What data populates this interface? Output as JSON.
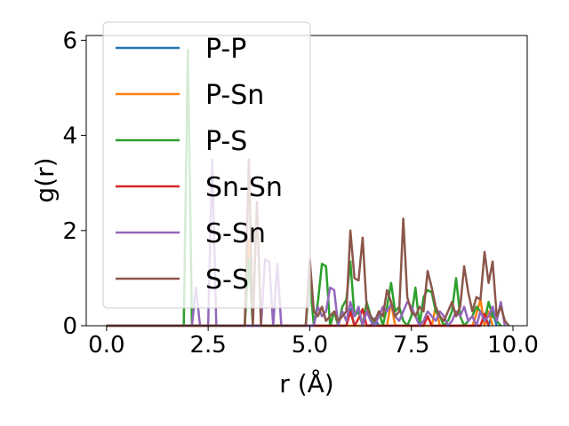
{
  "chart_data": {
    "type": "line",
    "xlabel": "r (Å)",
    "ylabel": "g(r)",
    "xlim": [
      -0.5,
      10.35
    ],
    "ylim": [
      0,
      6.1
    ],
    "x_ticks": [
      0.0,
      2.5,
      5.0,
      7.5,
      10.0
    ],
    "x_tick_labels": [
      "0.0",
      "2.5",
      "5.0",
      "7.5",
      "10.0"
    ],
    "y_ticks": [
      0,
      2,
      4,
      6
    ],
    "y_tick_labels": [
      "0",
      "2",
      "4",
      "6"
    ],
    "legend_position": "top-left",
    "grid": false,
    "series": [
      {
        "name": "P-P",
        "color": "#1f77b4",
        "x": [
          0,
          5.9,
          6.0,
          6.1,
          6.5,
          6.6,
          6.7,
          9.2,
          9.3,
          9.4,
          9.5,
          9.6
        ],
        "y": [
          0,
          0,
          0.35,
          0,
          0,
          0.15,
          0,
          0,
          0.25,
          0,
          0.3,
          0
        ]
      },
      {
        "name": "P-Sn",
        "color": "#ff7f0e",
        "x": [
          0,
          3.4,
          3.5,
          3.6,
          5.5,
          5.6,
          5.7,
          6.9,
          7.0,
          7.1,
          8.0,
          8.1,
          8.2,
          9.0,
          9.1,
          9.2,
          9.3,
          9.4,
          9.5
        ],
        "y": [
          0,
          0,
          1.8,
          0,
          0,
          0.3,
          0,
          0,
          0.5,
          0,
          0,
          0.4,
          0,
          0,
          0.25,
          0.55,
          0,
          0.3,
          0
        ]
      },
      {
        "name": "P-S",
        "color": "#2ca02c",
        "x": [
          0,
          1.9,
          2.0,
          2.1,
          3.4,
          3.5,
          3.6,
          4.9,
          5.0,
          5.1,
          5.2,
          5.3,
          5.4,
          5.5,
          5.6,
          5.7,
          5.8,
          5.9,
          6.0,
          6.1,
          6.2,
          6.3,
          6.4,
          6.5,
          6.6,
          6.7,
          6.8,
          6.9,
          7.0,
          7.1,
          7.2,
          7.3,
          7.4,
          7.5,
          7.6,
          7.7,
          7.8,
          7.9,
          8.0,
          8.1,
          8.2,
          8.3,
          8.4,
          8.5,
          8.6,
          8.7,
          8.8,
          8.9,
          9.0,
          9.1,
          9.2,
          9.3,
          9.4,
          9.5,
          9.6,
          9.7
        ],
        "y": [
          0,
          0,
          5.8,
          0,
          0,
          1.4,
          0,
          0,
          1.0,
          0,
          0.5,
          1.3,
          1.25,
          0,
          0.3,
          0,
          0.4,
          0.55,
          1.35,
          0.2,
          0.3,
          0,
          0.5,
          0.2,
          0,
          0.3,
          0,
          0.4,
          0.9,
          0.3,
          0.4,
          0.1,
          0,
          0.2,
          0.8,
          0,
          0.6,
          0.75,
          0.7,
          0.3,
          0.2,
          0,
          0.1,
          0.3,
          1.0,
          0.2,
          0,
          0.1,
          0.2,
          0.4,
          0.3,
          0.1,
          0.5,
          0.2,
          0.1,
          0
        ]
      },
      {
        "name": "Sn-Sn",
        "color": "#d62728",
        "x": [
          0,
          5.9,
          6.0,
          6.1,
          6.2,
          6.3,
          6.4,
          7.8,
          7.9,
          8.0,
          9.2,
          9.3,
          9.4
        ],
        "y": [
          0,
          0,
          0.3,
          0,
          0.15,
          0.35,
          0,
          0,
          0.2,
          0,
          0,
          0.25,
          0
        ]
      },
      {
        "name": "S-Sn",
        "color": "#9467bd",
        "x": [
          0,
          2.1,
          2.2,
          2.3,
          2.5,
          2.6,
          2.7,
          3.8,
          3.9,
          4.0,
          4.1,
          4.2,
          4.3,
          4.4,
          5.1,
          5.2,
          5.3,
          5.4,
          5.5,
          5.6,
          5.7,
          5.8,
          5.9,
          6.0,
          6.1,
          6.2,
          6.3,
          6.4,
          6.5,
          6.6,
          6.7,
          6.8,
          6.9,
          7.0,
          7.1,
          7.2,
          7.3,
          7.4,
          7.5,
          7.6,
          7.7,
          7.8,
          7.9,
          8.0,
          8.1,
          8.2,
          8.3,
          8.4,
          8.5,
          8.6,
          8.7,
          8.8,
          8.9,
          9.0,
          9.1,
          9.2,
          9.3,
          9.4,
          9.5,
          9.6,
          9.7,
          9.8
        ],
        "y": [
          0,
          0,
          0.8,
          0,
          0,
          3.5,
          0,
          0,
          1.4,
          1.35,
          0,
          1.3,
          0,
          0,
          0,
          0.4,
          0.2,
          0.3,
          0.8,
          0.75,
          0,
          0.3,
          0.1,
          0.5,
          0.2,
          0.4,
          0,
          0.3,
          0.1,
          0,
          0.2,
          0.4,
          0.3,
          0.45,
          0.2,
          0.1,
          0.3,
          0.5,
          0.4,
          0.2,
          0,
          0.1,
          0.3,
          0.2,
          0.1,
          0.3,
          0.2,
          0,
          0.1,
          0.3,
          0.2,
          0.4,
          0.1,
          0.2,
          0,
          0.3,
          0.1,
          0.2,
          0.4,
          0.1,
          0.5,
          0
        ]
      },
      {
        "name": "S-S",
        "color": "#8c564b",
        "x": [
          0,
          3.4,
          3.5,
          3.6,
          3.7,
          3.8,
          4.9,
          5.0,
          5.1,
          5.2,
          5.3,
          5.4,
          5.5,
          5.6,
          5.7,
          5.8,
          5.9,
          6.0,
          6.1,
          6.2,
          6.3,
          6.4,
          6.5,
          6.6,
          6.7,
          6.8,
          6.9,
          7.0,
          7.1,
          7.2,
          7.3,
          7.4,
          7.5,
          7.6,
          7.7,
          7.8,
          7.9,
          8.0,
          8.1,
          8.2,
          8.3,
          8.4,
          8.5,
          8.6,
          8.7,
          8.8,
          8.9,
          9.0,
          9.1,
          9.2,
          9.3,
          9.4,
          9.5,
          9.6,
          9.7,
          9.8,
          9.9
        ],
        "y": [
          0,
          0,
          3.5,
          0,
          2.6,
          0,
          0,
          1.4,
          0.3,
          0.2,
          0.4,
          0.1,
          0.2,
          0.3,
          0.1,
          0.2,
          0.3,
          2.0,
          1.0,
          0.95,
          1.85,
          0.4,
          0.2,
          0.1,
          0.3,
          0.2,
          0.75,
          0.5,
          0.2,
          0.3,
          2.25,
          0.6,
          0.3,
          0.2,
          0.4,
          0.3,
          1.15,
          0.8,
          0.4,
          0.2,
          0.1,
          0.3,
          0.5,
          0.2,
          0.4,
          1.25,
          0.7,
          0.3,
          0.6,
          0.55,
          1.55,
          0.9,
          1.35,
          0.2,
          0.4,
          0.1,
          0
        ]
      }
    ]
  }
}
